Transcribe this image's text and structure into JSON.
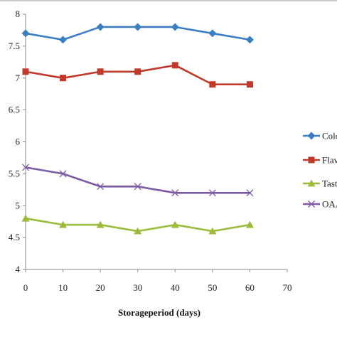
{
  "chart_data": {
    "type": "line",
    "title": "",
    "xlabel": "Storageperiod (days)",
    "ylabel": "",
    "x": [
      0,
      10,
      20,
      30,
      40,
      50,
      60
    ],
    "xlim": [
      0,
      70
    ],
    "xticks": [
      0,
      10,
      20,
      30,
      40,
      50,
      60,
      70
    ],
    "ylim": [
      4,
      8
    ],
    "yticks": [
      4,
      4.5,
      5,
      5.5,
      6,
      6.5,
      7,
      7.5,
      8
    ],
    "grid": false,
    "legend_position": "right",
    "series": [
      {
        "name": "Colo",
        "color": "#3a7fc4",
        "marker": "diamond",
        "values": [
          7.7,
          7.6,
          7.8,
          7.8,
          7.8,
          7.7,
          7.6
        ]
      },
      {
        "name": "Flav",
        "color": "#c0392b",
        "marker": "square",
        "values": [
          7.1,
          7.0,
          7.1,
          7.1,
          7.2,
          6.9,
          6.9
        ]
      },
      {
        "name": "Tast",
        "color": "#9bbb3b",
        "marker": "triangle",
        "values": [
          4.8,
          4.7,
          4.7,
          4.6,
          4.7,
          4.6,
          4.7
        ]
      },
      {
        "name": "OAA",
        "color": "#7e5aa6",
        "marker": "x",
        "values": [
          5.6,
          5.5,
          5.3,
          5.3,
          5.2,
          5.2,
          5.2
        ]
      }
    ]
  }
}
